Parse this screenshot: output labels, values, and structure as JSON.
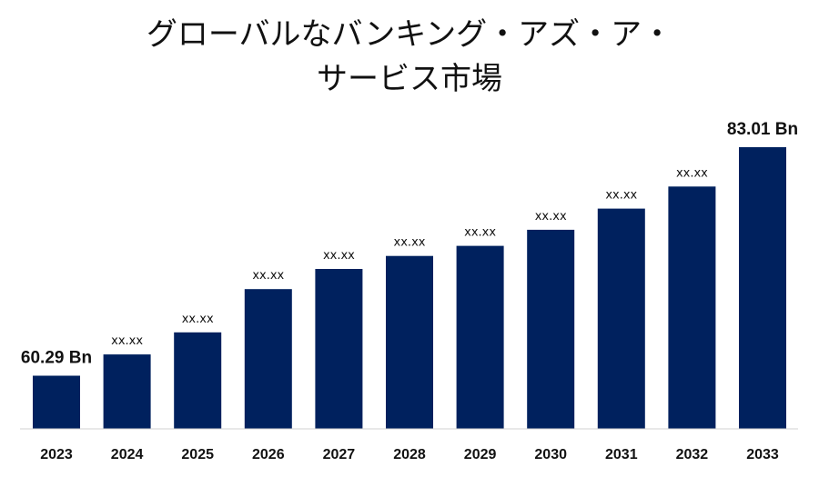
{
  "title_lines": [
    "グローバルなバンキング・アズ・ア・",
    "サービス市場"
  ],
  "chart_data": {
    "type": "bar",
    "title": "グローバルなバンキング・アズ・ア・サービス市場",
    "xlabel": "",
    "ylabel": "",
    "categories": [
      "2023",
      "2024",
      "2025",
      "2026",
      "2027",
      "2028",
      "2029",
      "2030",
      "2031",
      "2032",
      "2033"
    ],
    "values": [
      60.29,
      62.4,
      64.6,
      68.9,
      70.9,
      72.2,
      73.2,
      74.8,
      76.9,
      79.1,
      83.01
    ],
    "value_labels": [
      "60.29 Bn",
      "xx.xx",
      "xx.xx",
      "xx.xx",
      "xx.xx",
      "xx.xx",
      "xx.xx",
      "xx.xx",
      "xx.xx",
      "xx.xx",
      "83.01 Bn"
    ],
    "ylim": [
      55,
      85
    ],
    "grid": false,
    "legend": "none",
    "bar_color": "#00215e"
  }
}
